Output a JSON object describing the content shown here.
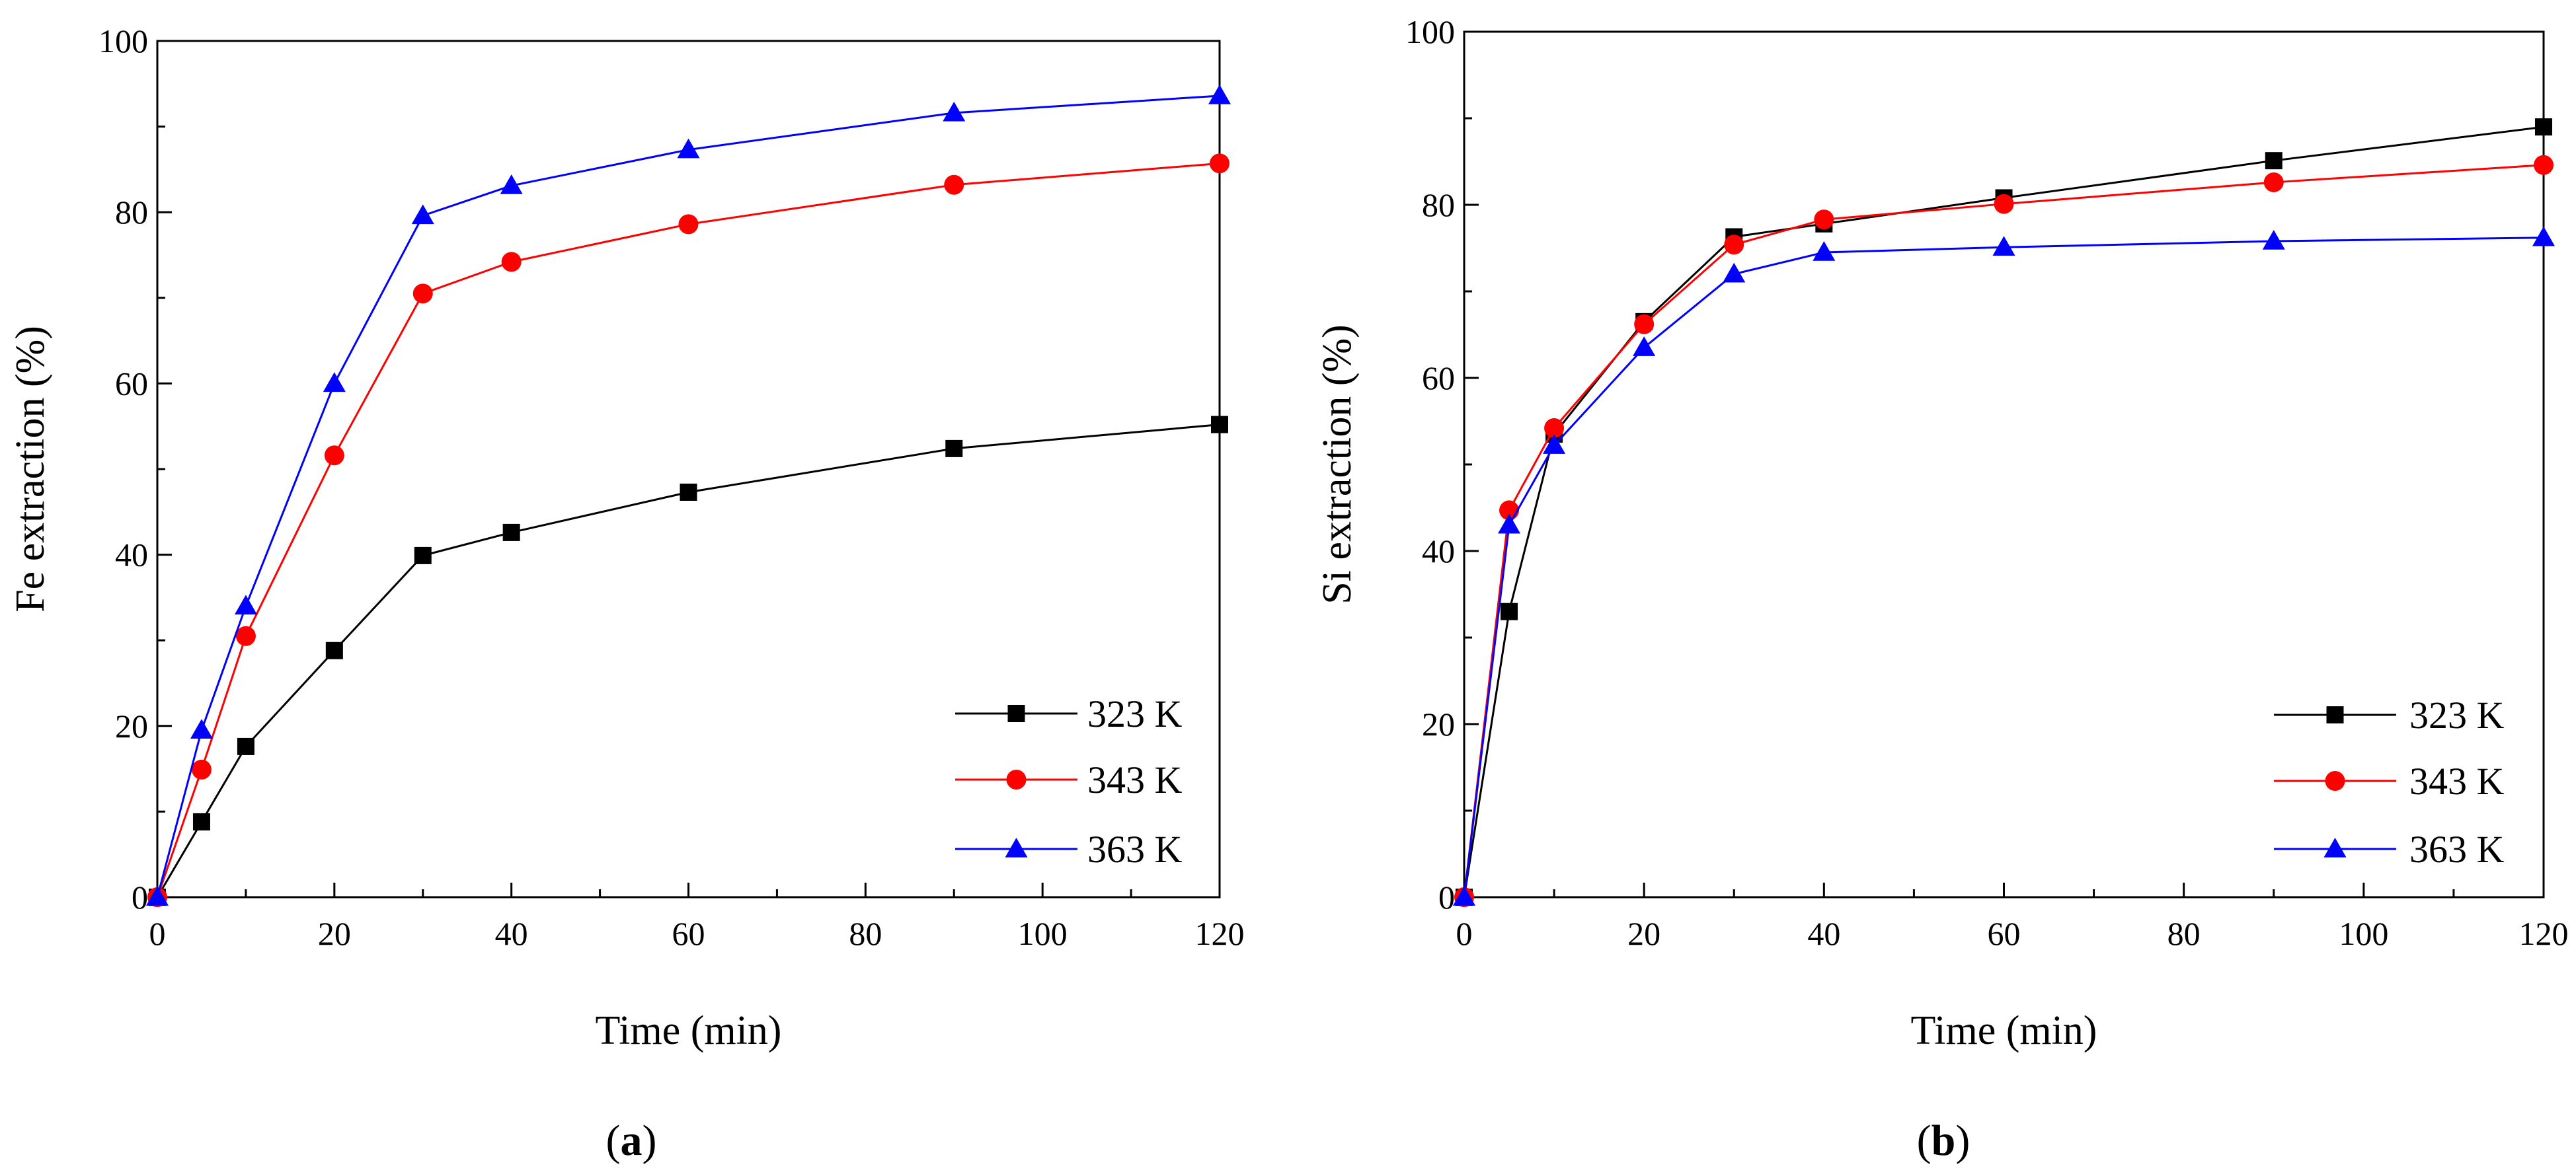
{
  "chart_data": [
    {
      "id": "a",
      "type": "line",
      "panel_label": "a",
      "xlabel": "Time (min)",
      "ylabel": "Fe extraction (%)",
      "xlim": [
        0,
        120
      ],
      "ylim": [
        0,
        100
      ],
      "xticks": [
        0,
        20,
        40,
        60,
        80,
        100,
        120
      ],
      "yticks": [
        0,
        20,
        40,
        60,
        80,
        100
      ],
      "legend_position": "bottom-right",
      "series": [
        {
          "name": "323 K",
          "color": "#000000",
          "marker": "square",
          "x": [
            0,
            5,
            10,
            20,
            30,
            40,
            60,
            90,
            120
          ],
          "y": [
            0,
            8.8,
            17.6,
            28.8,
            39.9,
            42.6,
            47.3,
            52.4,
            55.2
          ]
        },
        {
          "name": "343 K",
          "color": "#ff0000",
          "marker": "circle",
          "x": [
            0,
            5,
            10,
            20,
            30,
            40,
            60,
            90,
            120
          ],
          "y": [
            0,
            14.9,
            30.5,
            51.6,
            70.5,
            74.2,
            78.6,
            83.2,
            85.7
          ]
        },
        {
          "name": "363 K",
          "color": "#0000ff",
          "marker": "triangle",
          "x": [
            0,
            5,
            10,
            20,
            30,
            40,
            60,
            90,
            120
          ],
          "y": [
            0,
            19.5,
            34.0,
            60.0,
            79.6,
            83.1,
            87.3,
            91.6,
            93.6
          ]
        }
      ]
    },
    {
      "id": "b",
      "type": "line",
      "panel_label": "b",
      "xlabel": "Time (min)",
      "ylabel": "Si extraction (%)",
      "xlim": [
        0,
        120
      ],
      "ylim": [
        0,
        100
      ],
      "xticks": [
        0,
        20,
        40,
        60,
        80,
        100,
        120
      ],
      "yticks": [
        0,
        20,
        40,
        60,
        80,
        100
      ],
      "legend_position": "bottom-right",
      "series": [
        {
          "name": "323 K",
          "color": "#000000",
          "marker": "square",
          "x": [
            0,
            5,
            10,
            20,
            30,
            40,
            60,
            90,
            120
          ],
          "y": [
            0,
            33.0,
            53.5,
            66.5,
            76.3,
            77.8,
            80.8,
            85.1,
            89.0
          ]
        },
        {
          "name": "343 K",
          "color": "#ff0000",
          "marker": "circle",
          "x": [
            0,
            5,
            10,
            20,
            30,
            40,
            60,
            90,
            120
          ],
          "y": [
            0,
            44.7,
            54.2,
            66.2,
            75.4,
            78.3,
            80.1,
            82.6,
            84.6
          ]
        },
        {
          "name": "363 K",
          "color": "#0000ff",
          "marker": "triangle",
          "x": [
            0,
            5,
            10,
            20,
            30,
            40,
            60,
            90,
            120
          ],
          "y": [
            0,
            43.0,
            52.2,
            63.5,
            72.0,
            74.5,
            75.1,
            75.8,
            76.2
          ]
        }
      ]
    }
  ]
}
